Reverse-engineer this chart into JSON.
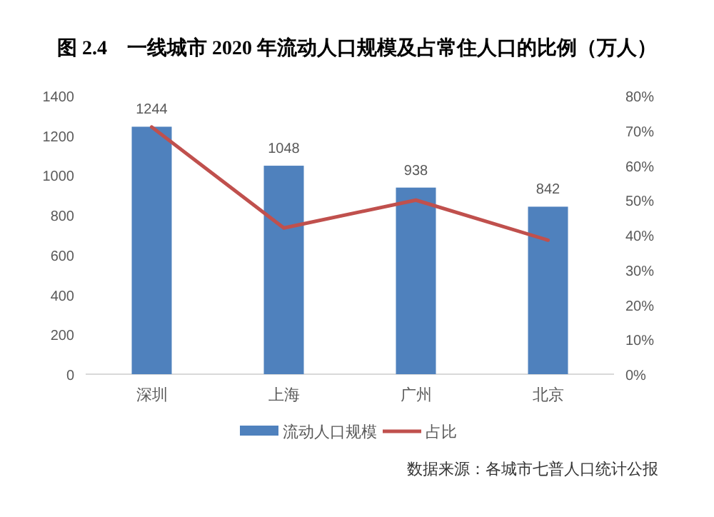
{
  "chart_data": {
    "type": "bar",
    "title": "图 2.4　一线城市 2020 年流动人口规模及占常住人口的比例（万人）",
    "categories": [
      "深圳",
      "上海",
      "广州",
      "北京"
    ],
    "series": [
      {
        "name": "流动人口规模",
        "color": "#4f81bd",
        "values": [
          1244,
          1048,
          938,
          842
        ],
        "value_labels": [
          "1244",
          "1048",
          "938",
          "842"
        ]
      },
      {
        "name": "占比",
        "type": "line",
        "axis": "y2",
        "color": "#c0504d",
        "values": [
          71,
          42,
          50,
          38.5
        ]
      }
    ],
    "ylim": [
      0,
      1400
    ],
    "yticks": [
      0,
      200,
      400,
      600,
      800,
      1000,
      1200,
      1400
    ],
    "y2lim": [
      0,
      80
    ],
    "y2ticks": [
      {
        "value": 0,
        "label": "0%"
      },
      {
        "value": 10,
        "label": "10%"
      },
      {
        "value": 20,
        "label": "20%"
      },
      {
        "value": 30,
        "label": "30%"
      },
      {
        "value": 40,
        "label": "40%"
      },
      {
        "value": 50,
        "label": "50%"
      },
      {
        "value": 60,
        "label": "60%"
      },
      {
        "value": 70,
        "label": "70%"
      },
      {
        "value": 80,
        "label": "80%"
      }
    ],
    "grid": false,
    "legend": "bottom",
    "annotations": [
      "数据来源：各城市七普人口统计公报"
    ]
  }
}
